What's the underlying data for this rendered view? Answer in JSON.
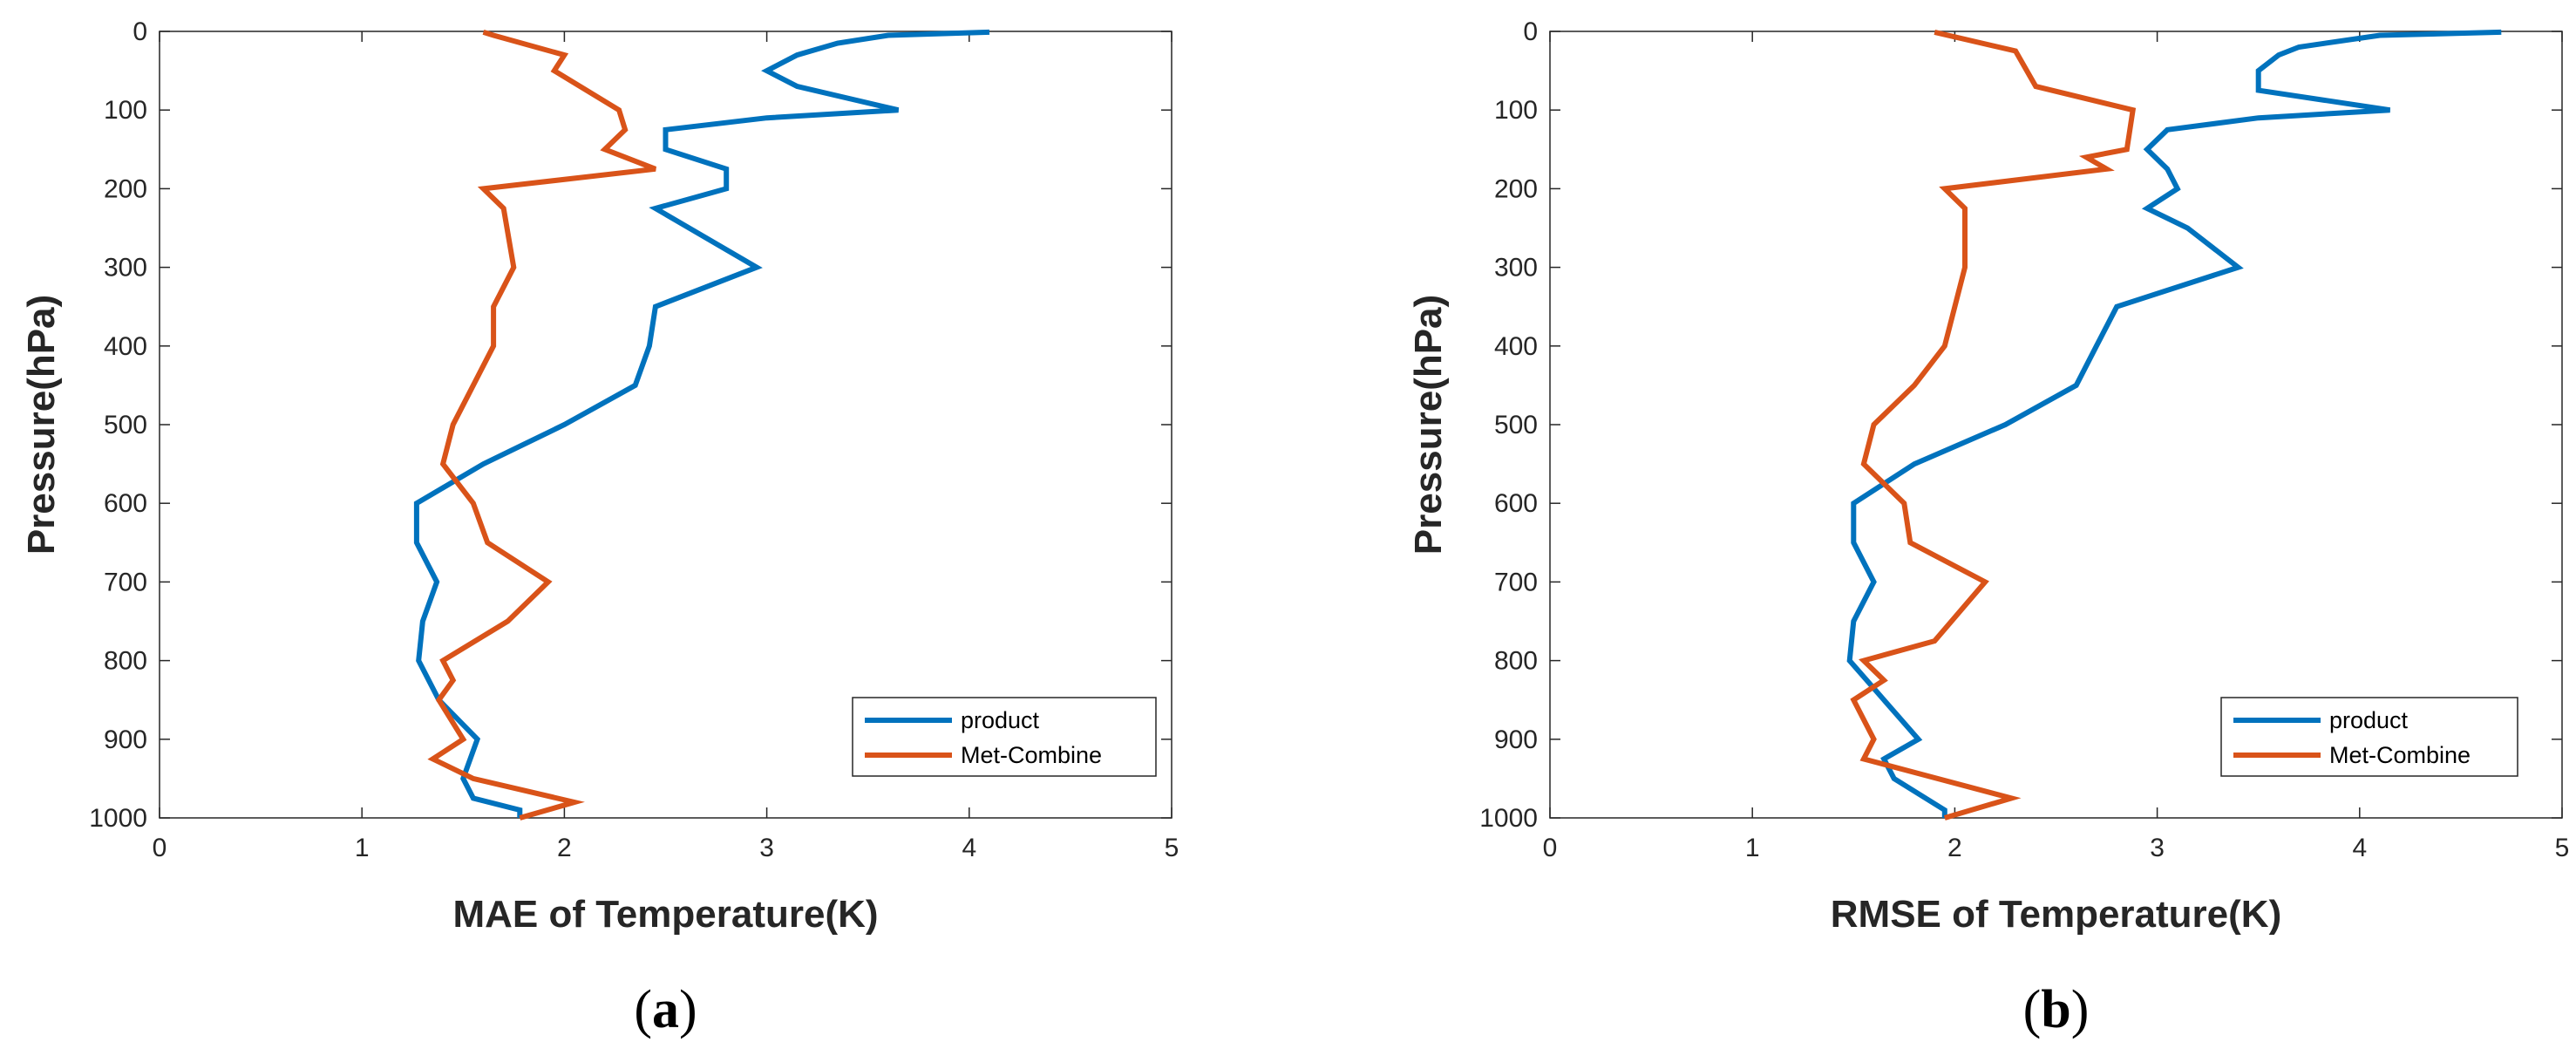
{
  "chart_data": [
    {
      "type": "line",
      "panel_label": "a",
      "xlabel": "MAE of Temperature(K)",
      "ylabel": "Pressure(hPa)",
      "xlim": [
        0,
        5
      ],
      "ylim": [
        0,
        1000
      ],
      "y_reversed": true,
      "xticks": [
        0,
        1,
        2,
        3,
        4,
        5
      ],
      "yticks": [
        0,
        100,
        200,
        300,
        400,
        500,
        600,
        700,
        800,
        900,
        1000
      ],
      "grid": false,
      "legend_position": "bottom-right",
      "series": [
        {
          "name": "product",
          "color": "#0072BD",
          "points": [
            [
              4.1,
              1
            ],
            [
              3.6,
              5
            ],
            [
              3.35,
              15
            ],
            [
              3.15,
              30
            ],
            [
              3.0,
              50
            ],
            [
              3.15,
              70
            ],
            [
              3.65,
              100
            ],
            [
              3.0,
              110
            ],
            [
              2.5,
              125
            ],
            [
              2.5,
              150
            ],
            [
              2.8,
              175
            ],
            [
              2.8,
              200
            ],
            [
              2.45,
              225
            ],
            [
              2.95,
              300
            ],
            [
              2.45,
              350
            ],
            [
              2.42,
              400
            ],
            [
              2.35,
              450
            ],
            [
              2.0,
              500
            ],
            [
              1.6,
              550
            ],
            [
              1.27,
              600
            ],
            [
              1.27,
              650
            ],
            [
              1.37,
              700
            ],
            [
              1.3,
              750
            ],
            [
              1.28,
              800
            ],
            [
              1.38,
              850
            ],
            [
              1.57,
              900
            ],
            [
              1.5,
              950
            ],
            [
              1.55,
              975
            ],
            [
              1.78,
              990
            ],
            [
              1.78,
              1000
            ]
          ]
        },
        {
          "name": "Met-Combine",
          "color": "#D95319",
          "points": [
            [
              1.6,
              1
            ],
            [
              1.65,
              5
            ],
            [
              2.0,
              30
            ],
            [
              1.95,
              50
            ],
            [
              2.27,
              100
            ],
            [
              2.3,
              125
            ],
            [
              2.2,
              150
            ],
            [
              2.45,
              175
            ],
            [
              1.6,
              200
            ],
            [
              1.7,
              225
            ],
            [
              1.75,
              300
            ],
            [
              1.65,
              350
            ],
            [
              1.65,
              400
            ],
            [
              1.55,
              450
            ],
            [
              1.45,
              500
            ],
            [
              1.4,
              550
            ],
            [
              1.55,
              600
            ],
            [
              1.62,
              650
            ],
            [
              1.92,
              700
            ],
            [
              1.72,
              750
            ],
            [
              1.4,
              800
            ],
            [
              1.45,
              825
            ],
            [
              1.38,
              850
            ],
            [
              1.5,
              900
            ],
            [
              1.35,
              925
            ],
            [
              1.55,
              950
            ],
            [
              2.05,
              980
            ],
            [
              1.78,
              1000
            ]
          ]
        }
      ]
    },
    {
      "type": "line",
      "panel_label": "b",
      "xlabel": "RMSE of Temperature(K)",
      "ylabel": "Pressure(hPa)",
      "xlim": [
        0,
        5
      ],
      "ylim": [
        0,
        1000
      ],
      "y_reversed": true,
      "xticks": [
        0,
        1,
        2,
        3,
        4,
        5
      ],
      "yticks": [
        0,
        100,
        200,
        300,
        400,
        500,
        600,
        700,
        800,
        900,
        1000
      ],
      "grid": false,
      "legend_position": "bottom-right",
      "series": [
        {
          "name": "product",
          "color": "#0072BD",
          "points": [
            [
              4.7,
              1
            ],
            [
              4.1,
              5
            ],
            [
              3.7,
              20
            ],
            [
              3.6,
              30
            ],
            [
              3.5,
              50
            ],
            [
              3.5,
              75
            ],
            [
              4.15,
              100
            ],
            [
              3.5,
              110
            ],
            [
              3.05,
              125
            ],
            [
              2.95,
              150
            ],
            [
              3.05,
              175
            ],
            [
              3.1,
              200
            ],
            [
              2.95,
              225
            ],
            [
              3.15,
              250
            ],
            [
              3.4,
              300
            ],
            [
              2.8,
              350
            ],
            [
              2.7,
              400
            ],
            [
              2.6,
              450
            ],
            [
              2.25,
              500
            ],
            [
              1.8,
              550
            ],
            [
              1.5,
              600
            ],
            [
              1.5,
              650
            ],
            [
              1.6,
              700
            ],
            [
              1.5,
              750
            ],
            [
              1.48,
              800
            ],
            [
              1.65,
              850
            ],
            [
              1.82,
              900
            ],
            [
              1.65,
              925
            ],
            [
              1.7,
              950
            ],
            [
              1.95,
              990
            ],
            [
              1.95,
              1000
            ]
          ]
        },
        {
          "name": "Met-Combine",
          "color": "#D95319",
          "points": [
            [
              1.9,
              1
            ],
            [
              2.3,
              25
            ],
            [
              2.4,
              70
            ],
            [
              2.88,
              100
            ],
            [
              2.85,
              150
            ],
            [
              2.65,
              160
            ],
            [
              2.75,
              175
            ],
            [
              1.95,
              200
            ],
            [
              2.05,
              225
            ],
            [
              2.05,
              300
            ],
            [
              1.95,
              400
            ],
            [
              1.8,
              450
            ],
            [
              1.6,
              500
            ],
            [
              1.55,
              550
            ],
            [
              1.75,
              600
            ],
            [
              1.78,
              650
            ],
            [
              2.15,
              700
            ],
            [
              1.9,
              775
            ],
            [
              1.55,
              800
            ],
            [
              1.65,
              825
            ],
            [
              1.5,
              850
            ],
            [
              1.6,
              900
            ],
            [
              1.55,
              925
            ],
            [
              2.28,
              975
            ],
            [
              1.95,
              1000
            ]
          ]
        }
      ]
    }
  ]
}
